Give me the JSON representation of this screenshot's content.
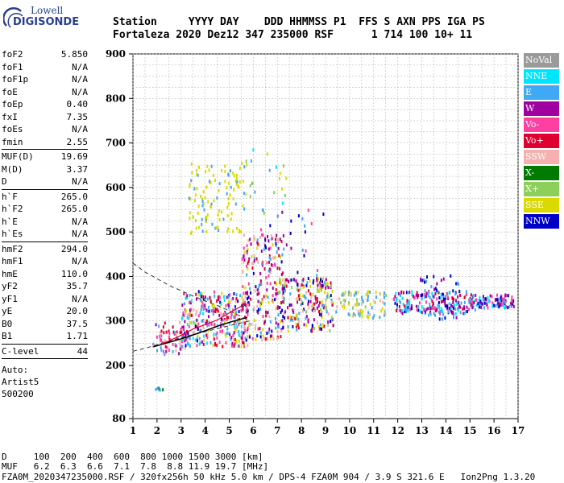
{
  "logo": {
    "line1": "Lowell",
    "line2": "DIGISONDE"
  },
  "header": {
    "labels": "Station     YYYY DAY    DDD HHMMSS P1  FFS S AXN PPS IGA PS",
    "values": "Fortaleza 2020 Dez12 347 235000 RSF      1 714 100 10+ 11"
  },
  "params": {
    "g1": [
      [
        "foF2",
        "5.850"
      ],
      [
        "foF1",
        "N/A"
      ],
      [
        "foF1p",
        "N/A"
      ],
      [
        "foE",
        "N/A"
      ],
      [
        "foEp",
        "0.40"
      ],
      [
        "fxI",
        "7.35"
      ],
      [
        "foEs",
        "N/A"
      ],
      [
        "fmin",
        "2.55"
      ]
    ],
    "g2": [
      [
        "MUF(D)",
        "19.69"
      ],
      [
        "M(D)",
        "3.37"
      ],
      [
        "D",
        "N/A"
      ]
    ],
    "g3": [
      [
        "h`F",
        "265.0"
      ],
      [
        "h`F2",
        "265.0"
      ],
      [
        "h`E",
        "N/A"
      ],
      [
        "h`Es",
        "N/A"
      ]
    ],
    "g4": [
      [
        "hmF2",
        "294.0"
      ],
      [
        "hmF1",
        "N/A"
      ],
      [
        "hmE",
        "110.0"
      ],
      [
        "yF2",
        "35.7"
      ],
      [
        "yF1",
        "N/A"
      ],
      [
        "yE",
        "20.0"
      ],
      [
        "B0",
        "37.5"
      ],
      [
        "B1",
        "1.71"
      ]
    ],
    "g5": [
      [
        "C-level",
        "44"
      ]
    ]
  },
  "auto": {
    "line1": "Auto:",
    "line2": "Artist5",
    "line3": "500200"
  },
  "legend": [
    {
      "label": "NoVal",
      "color": "#9a9a9a"
    },
    {
      "label": "NNE",
      "color": "#00e5ff"
    },
    {
      "label": "E",
      "color": "#3fa9f5"
    },
    {
      "label": "W",
      "color": "#a000a0"
    },
    {
      "label": "Vo-",
      "color": "#ff40a0"
    },
    {
      "label": "Vo+",
      "color": "#e00030"
    },
    {
      "label": "SSW",
      "color": "#f5b0b0"
    },
    {
      "label": "X-",
      "color": "#007a00"
    },
    {
      "label": "X+",
      "color": "#8ccf5a"
    },
    {
      "label": "SSE",
      "color": "#dada00"
    },
    {
      "label": "NNW",
      "color": "#0000c8"
    }
  ],
  "bottom": {
    "line1": "D     100  200  400  600  800 1000 1500 3000 [km]",
    "line2": "MUF   6.2  6.3  6.6  7.1  7.8  8.8 11.9 19.7 [MHz]",
    "line3": "FZA0M_2020347235000.RSF / 320fx256h 50 kHz 5.0 km / DPS-4 FZA0M 904 / 3.9 S 321.6 E   Ion2Png 1.3.20"
  },
  "chart_data": {
    "type": "scatter",
    "xlim": [
      1,
      17
    ],
    "ylim": [
      80,
      900
    ],
    "x_ticks": [
      1,
      2,
      3,
      4,
      5,
      6,
      7,
      8,
      9,
      10,
      11,
      12,
      13,
      14,
      15,
      16,
      17
    ],
    "y_ticks": [
      80,
      200,
      300,
      400,
      500,
      600,
      700,
      800,
      900
    ],
    "y_ticklabels": [
      "80",
      "200",
      "300",
      "400",
      "500",
      "600",
      "700",
      "800",
      "900"
    ],
    "grid": true,
    "legend_position": "right",
    "clouds": [
      {
        "x0": 1.8,
        "x1": 3.2,
        "y0": 228,
        "y1": 300,
        "n": 70,
        "colors": [
          "#a000a0",
          "#e00030",
          "#f5b0b0",
          "#3fa9f5",
          "#ff40a0"
        ]
      },
      {
        "x0": 3.0,
        "x1": 5.8,
        "y0": 245,
        "y1": 370,
        "n": 330,
        "colors": [
          "#3fa9f5",
          "#00e5ff",
          "#a000a0",
          "#f5b0b0",
          "#e00030",
          "#dada00",
          "#0000c8",
          "#ff40a0"
        ]
      },
      {
        "x0": 5.5,
        "x1": 7.2,
        "y0": 260,
        "y1": 500,
        "n": 230,
        "colors": [
          "#dada00",
          "#a000a0",
          "#ff40a0",
          "#e00030",
          "#3fa9f5",
          "#f5b0b0",
          "#0000c8"
        ]
      },
      {
        "x0": 7.0,
        "x1": 9.3,
        "y0": 280,
        "y1": 400,
        "n": 230,
        "colors": [
          "#dada00",
          "#f5b0b0",
          "#3fa9f5",
          "#a000a0",
          "#0000c8",
          "#8ccf5a",
          "#e00030"
        ]
      },
      {
        "x0": 6.2,
        "x1": 9.0,
        "y0": 380,
        "y1": 560,
        "n": 35,
        "colors": [
          "#a000a0",
          "#0000c8",
          "#3fa9f5",
          "#ff40a0"
        ]
      },
      {
        "x0": 9.4,
        "x1": 11.5,
        "y0": 310,
        "y1": 370,
        "n": 85,
        "colors": [
          "#dada00",
          "#f5b0b0",
          "#3fa9f5",
          "#8ccf5a"
        ]
      },
      {
        "x0": 11.8,
        "x1": 15.2,
        "y0": 318,
        "y1": 370,
        "n": 190,
        "colors": [
          "#a000a0",
          "#3fa9f5",
          "#0000c8",
          "#e00030",
          "#ff40a0",
          "#00e5ff"
        ]
      },
      {
        "x0": 12.7,
        "x1": 14.5,
        "y0": 305,
        "y1": 405,
        "n": 60,
        "colors": [
          "#0000c8",
          "#a000a0",
          "#3fa9f5"
        ]
      },
      {
        "x0": 15.0,
        "x1": 16.8,
        "y0": 333,
        "y1": 362,
        "n": 110,
        "colors": [
          "#a000a0",
          "#3fa9f5",
          "#00e5ff",
          "#0000c8",
          "#ff40a0"
        ]
      },
      {
        "x0": 3.3,
        "x1": 5.6,
        "y0": 500,
        "y1": 660,
        "n": 115,
        "colors": [
          "#dada00",
          "#dada00",
          "#dada00",
          "#3fa9f5"
        ]
      },
      {
        "x0": 5.5,
        "x1": 7.4,
        "y0": 540,
        "y1": 690,
        "n": 25,
        "colors": [
          "#dada00",
          "#3fa9f5",
          "#8ccf5a",
          "#00e5ff"
        ]
      },
      {
        "x0": 1.9,
        "x1": 2.4,
        "y0": 148,
        "y1": 152,
        "n": 6,
        "colors": [
          "#007a00",
          "#3fa9f5"
        ]
      }
    ],
    "trace": {
      "x": [
        1.85,
        2.5,
        3.2,
        4.0,
        4.6,
        5.2,
        5.75
      ],
      "y": [
        242,
        252,
        263,
        278,
        290,
        300,
        308
      ]
    },
    "trace2": {
      "x": [
        2.2,
        2.9,
        3.5,
        4.0,
        4.5,
        5.0,
        5.4,
        5.7
      ],
      "y": [
        248,
        265,
        282,
        292,
        302,
        318,
        330,
        340
      ]
    },
    "profile_dashed": {
      "x": [
        1,
        1.5,
        2,
        2.5,
        3,
        3.5,
        4,
        4.5,
        5,
        5.5,
        5.85
      ],
      "y": [
        430,
        410,
        395,
        380,
        368,
        356,
        345,
        335,
        323,
        310,
        300
      ]
    },
    "profile_dashed2": {
      "x": [
        1,
        1.6,
        2.2,
        2.8,
        3.4,
        4.0,
        4.6,
        5.2,
        5.85
      ],
      "y": [
        232,
        240,
        250,
        259,
        268,
        276,
        284,
        292,
        300
      ]
    }
  }
}
